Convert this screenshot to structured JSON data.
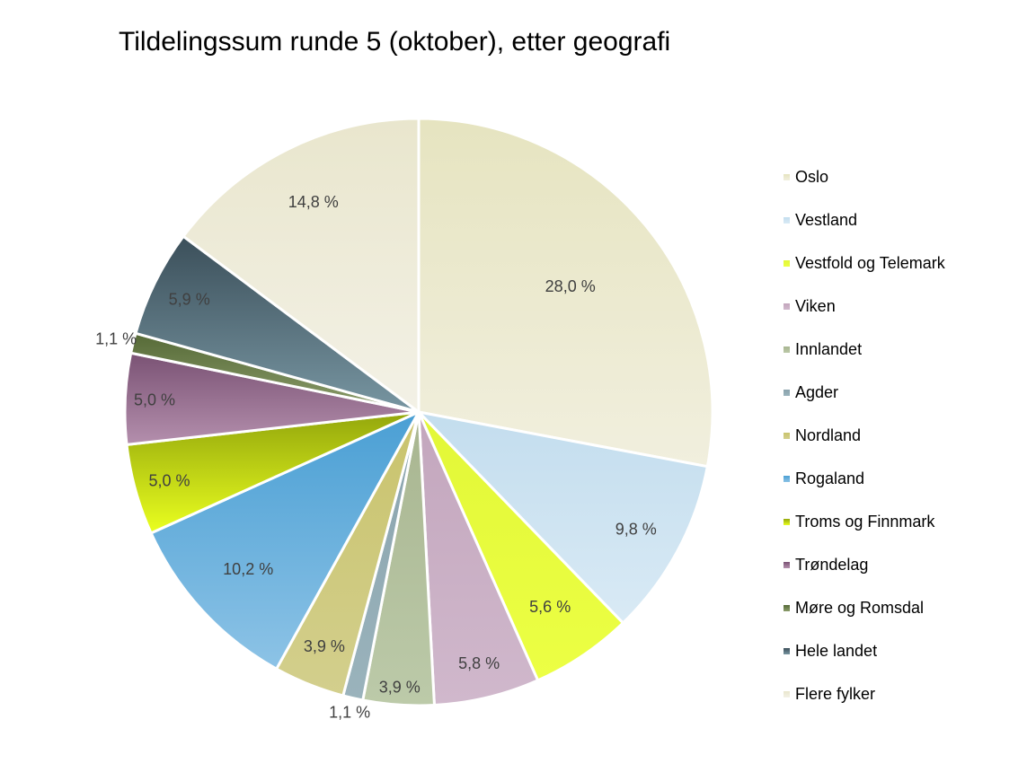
{
  "chart_data": {
    "type": "pie",
    "title": "Tildelingssum runde 5 (oktober), etter geografi",
    "slices": [
      {
        "name": "Oslo",
        "value": 28.0,
        "label": "28,0 %",
        "color": "#ebe9c9",
        "color_top": "#e6e4c0",
        "color_bottom": "#f1efde"
      },
      {
        "name": "Vestland",
        "value": 9.8,
        "label": "9,8 %",
        "color": "#cde3f1",
        "color_top": "#c3ddee",
        "color_bottom": "#d9eaf5"
      },
      {
        "name": "Vestfold og Telemark",
        "value": 5.6,
        "label": "5,6 %",
        "color": "#e6fb3c",
        "color_top": "#e2f737",
        "color_bottom": "#ecff44"
      },
      {
        "name": "Viken",
        "value": 5.8,
        "label": "5,8 %",
        "color": "#c9aec4",
        "color_top": "#c3a6bd",
        "color_bottom": "#d0b8cc"
      },
      {
        "name": "Innlandet",
        "value": 3.9,
        "label": "3,9 %",
        "color": "#b1bf9c",
        "color_top": "#a8b590",
        "color_bottom": "#bccaa9"
      },
      {
        "name": "Agder",
        "value": 1.1,
        "label": "1,1 %",
        "color": "#8ea8b2",
        "color_top": "#8aa3ad",
        "color_bottom": "#9ab3bc"
      },
      {
        "name": "Nordland",
        "value": 3.9,
        "label": "3,9 %",
        "color": "#cdc87a",
        "color_top": "#c9c36c",
        "color_bottom": "#d3cf8d"
      },
      {
        "name": "Rogaland",
        "value": 10.2,
        "label": "10,2 %",
        "color": "#6fb1dd",
        "color_top": "#4a9fd4",
        "color_bottom": "#8dc3e6"
      },
      {
        "name": "Troms og Finnmark",
        "value": 5.0,
        "label": "5,0 %",
        "color": "#c8dc16",
        "color_top": "#93a60c",
        "color_bottom": "#eaff1f"
      },
      {
        "name": "Trøndelag",
        "value": 5.0,
        "label": "5,0 %",
        "color": "#9c7795",
        "color_top": "#7a5274",
        "color_bottom": "#b48fad"
      },
      {
        "name": "Møre og Romsdal",
        "value": 1.1,
        "label": "1,1 %",
        "color": "#6f8250",
        "color_top": "#566a37",
        "color_bottom": "#8c9d6c"
      },
      {
        "name": "Hele landet",
        "value": 5.9,
        "label": "5,9 %",
        "color": "#5a7481",
        "color_top": "#3b4f5a",
        "color_bottom": "#7896a2"
      },
      {
        "name": "Flere fylker",
        "value": 14.8,
        "label": "14,8 %",
        "color": "#efedda",
        "color_top": "#e9e6cd",
        "color_bottom": "#f3f1e6"
      }
    ],
    "legend_position": "right",
    "start_angle_deg": 0,
    "direction": "clockwise"
  }
}
